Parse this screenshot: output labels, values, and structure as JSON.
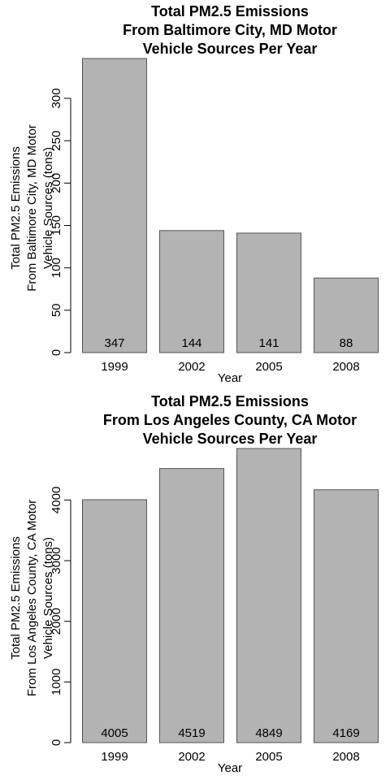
{
  "chart_data": [
    {
      "type": "bar",
      "title": [
        "Total PM2.5 Emissions",
        "From Baltimore City, MD Motor",
        "Vehicle Sources Per Year"
      ],
      "xlabel": "Year",
      "ylabel": [
        "Total PM2.5 Emissions",
        "From Baltimore City, MD Motor",
        "Vehicle Sources (tons)"
      ],
      "categories": [
        "1999",
        "2002",
        "2005",
        "2008"
      ],
      "values": [
        347,
        144,
        141,
        88
      ],
      "data_labels": [
        "347",
        "144",
        "141",
        "88"
      ],
      "ylim": [
        0,
        347
      ],
      "yticks": [
        0,
        50,
        100,
        150,
        200,
        250,
        300
      ],
      "bar_color": "#b3b3b3",
      "grid": false
    },
    {
      "type": "bar",
      "title": [
        "Total PM2.5 Emissions",
        "From Los Angeles County, CA Motor",
        "Vehicle Sources Per Year"
      ],
      "xlabel": "Year",
      "ylabel": [
        "Total PM2.5 Emissions",
        "From Los Angeles County, CA Motor",
        "Vehicle Sources (tons)"
      ],
      "categories": [
        "1999",
        "2002",
        "2005",
        "2008"
      ],
      "values": [
        4005,
        4519,
        4849,
        4169
      ],
      "data_labels": [
        "4005",
        "4519",
        "4849",
        "4169"
      ],
      "ylim": [
        0,
        4849
      ],
      "yticks": [
        0,
        1000,
        2000,
        3000,
        4000
      ],
      "bar_color": "#b3b3b3",
      "grid": false
    }
  ]
}
